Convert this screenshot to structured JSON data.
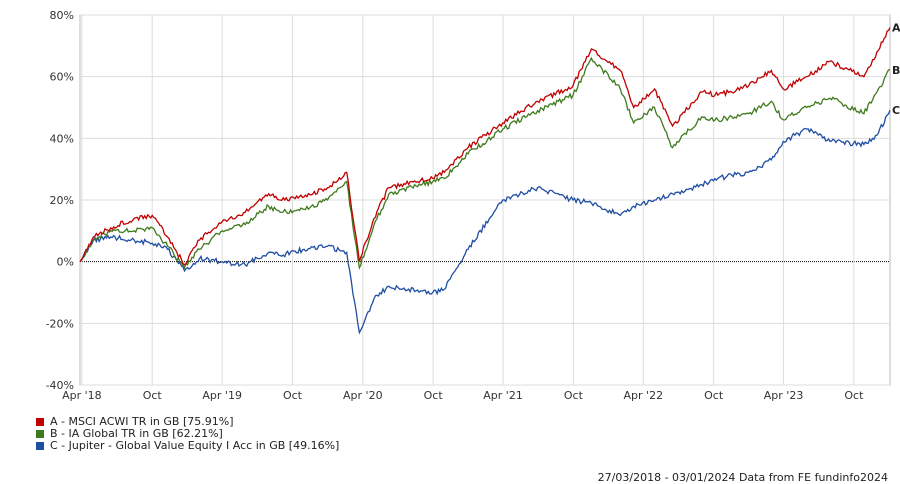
{
  "chart_data": {
    "type": "line",
    "title": "",
    "xlabel": "",
    "ylabel": "",
    "ylim": [
      -40,
      80
    ],
    "yticks": [
      -40,
      -20,
      0,
      20,
      40,
      60,
      80
    ],
    "ytick_labels": [
      "-40%",
      "-20%",
      "0%",
      "20%",
      "40%",
      "60%",
      "80%"
    ],
    "xlim": [
      "2018-03-27",
      "2024-01-03"
    ],
    "xticks": [
      "2018-04-01",
      "2018-10-01",
      "2019-04-01",
      "2019-10-01",
      "2020-04-01",
      "2020-10-01",
      "2021-04-01",
      "2021-10-01",
      "2022-04-01",
      "2022-10-01",
      "2023-04-01",
      "2023-10-01"
    ],
    "xtick_labels": [
      "Apr '18",
      "Oct",
      "Apr '19",
      "Oct",
      "Apr '20",
      "Oct",
      "Apr '21",
      "Oct",
      "Apr '22",
      "Oct",
      "Apr '23",
      "Oct"
    ],
    "grid": true,
    "series": [
      {
        "name": "A - MSCI ACWI TR in GB [75.91%]",
        "end_label": "A",
        "color": "#c00000",
        "x": [
          "2018-03-27",
          "2018-05-01",
          "2018-06-15",
          "2018-08-15",
          "2018-10-01",
          "2018-11-10",
          "2018-12-24",
          "2019-02-01",
          "2019-04-01",
          "2019-05-31",
          "2019-07-31",
          "2019-08-30",
          "2019-10-31",
          "2019-12-31",
          "2020-02-19",
          "2020-03-23",
          "2020-04-30",
          "2020-06-08",
          "2020-09-30",
          "2020-10-30",
          "2020-12-31",
          "2021-03-31",
          "2021-06-30",
          "2021-09-30",
          "2021-11-17",
          "2022-01-31",
          "2022-03-07",
          "2022-04-30",
          "2022-06-16",
          "2022-08-31",
          "2022-10-12",
          "2022-12-31",
          "2023-02-28",
          "2023-03-31",
          "2023-05-31",
          "2023-07-31",
          "2023-10-27",
          "2023-11-30",
          "2024-01-03"
        ],
        "y": [
          0,
          8,
          11,
          14,
          15,
          8,
          -1,
          7,
          13,
          16,
          22,
          20,
          21,
          24,
          29,
          0,
          14,
          24,
          27,
          29,
          37,
          45,
          52,
          57,
          69,
          62,
          50,
          56,
          44,
          55,
          54,
          57,
          62,
          56,
          60,
          65,
          60,
          68,
          75.91
        ]
      },
      {
        "name": "B - IA Global TR in GB [62.21%]",
        "end_label": "B",
        "color": "#3f7a1e",
        "x": [
          "2018-03-27",
          "2018-05-01",
          "2018-06-15",
          "2018-08-15",
          "2018-10-01",
          "2018-11-10",
          "2018-12-24",
          "2019-02-01",
          "2019-04-01",
          "2019-05-31",
          "2019-07-31",
          "2019-08-30",
          "2019-10-31",
          "2019-12-31",
          "2020-02-19",
          "2020-03-23",
          "2020-04-30",
          "2020-06-08",
          "2020-09-30",
          "2020-10-30",
          "2020-12-31",
          "2021-03-31",
          "2021-06-30",
          "2021-09-30",
          "2021-11-17",
          "2022-01-31",
          "2022-03-07",
          "2022-04-30",
          "2022-06-16",
          "2022-08-31",
          "2022-10-12",
          "2022-12-31",
          "2023-02-28",
          "2023-03-31",
          "2023-05-31",
          "2023-07-31",
          "2023-10-27",
          "2023-11-30",
          "2024-01-03"
        ],
        "y": [
          0,
          7,
          10,
          10,
          11,
          5,
          -2,
          4,
          10,
          12,
          18,
          16,
          17,
          20,
          26,
          -2,
          12,
          22,
          26,
          27,
          35,
          43,
          49,
          54,
          66,
          56,
          45,
          50,
          37,
          47,
          46,
          48,
          52,
          46,
          50,
          53,
          48,
          55,
          62.21
        ]
      },
      {
        "name": "C - Jupiter - Global Value Equity I Acc in GB [49.16%]",
        "end_label": "C",
        "color": "#1f4ea3",
        "x": [
          "2018-03-27",
          "2018-05-01",
          "2018-06-15",
          "2018-08-15",
          "2018-10-01",
          "2018-11-10",
          "2018-12-24",
          "2019-02-01",
          "2019-04-01",
          "2019-05-31",
          "2019-07-31",
          "2019-08-30",
          "2019-10-31",
          "2019-12-31",
          "2020-02-19",
          "2020-03-23",
          "2020-04-30",
          "2020-06-08",
          "2020-09-30",
          "2020-10-30",
          "2020-12-31",
          "2021-03-31",
          "2021-06-30",
          "2021-09-30",
          "2021-11-17",
          "2022-01-31",
          "2022-03-07",
          "2022-04-30",
          "2022-06-16",
          "2022-08-31",
          "2022-10-12",
          "2022-12-31",
          "2023-02-28",
          "2023-03-31",
          "2023-05-31",
          "2023-07-31",
          "2023-10-27",
          "2023-11-30",
          "2024-01-03"
        ],
        "y": [
          0,
          7,
          8,
          7,
          6,
          4,
          -3,
          1,
          0,
          -1,
          3,
          2,
          4,
          5,
          3,
          -23,
          -12,
          -8,
          -10,
          -9,
          4,
          20,
          24,
          20,
          19,
          15,
          18,
          20,
          22,
          25,
          27,
          29,
          33,
          39,
          43,
          39,
          38,
          41,
          49.16
        ]
      }
    ],
    "legend_position": "bottom-left"
  },
  "footer": {
    "date_range": "27/03/2018 - 03/01/2024",
    "source": "Data from FE fundinfo2024"
  }
}
